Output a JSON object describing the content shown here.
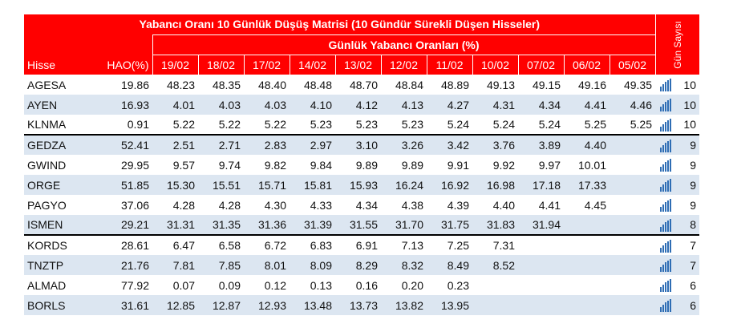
{
  "header": {
    "title": "Yabancı Oranı 10 Günlük Düşüş Matrisi  (10 Gündür Sürekli Düşen Hisseler)",
    "subtitle": "Günlük Yabancı Oranları (%)",
    "side": "Gün Sayısı"
  },
  "table": {
    "columns": [
      "Hisse",
      "HAO(%)",
      "19/02",
      "18/02",
      "17/02",
      "14/02",
      "13/02",
      "12/02",
      "11/02",
      "10/02",
      "07/02",
      "06/02",
      "05/02"
    ],
    "rows": [
      {
        "hisse": "AGESA",
        "hao": "19.86",
        "values": [
          "48.23",
          "48.35",
          "48.40",
          "48.48",
          "48.70",
          "48.84",
          "48.89",
          "49.13",
          "49.15",
          "49.16",
          "49.35"
        ],
        "days": 10
      },
      {
        "hisse": "AYEN",
        "hao": "16.93",
        "values": [
          "4.01",
          "4.03",
          "4.03",
          "4.10",
          "4.12",
          "4.13",
          "4.27",
          "4.31",
          "4.34",
          "4.41",
          "4.46"
        ],
        "days": 10
      },
      {
        "hisse": "KLNMA",
        "hao": "0.91",
        "values": [
          "5.22",
          "5.22",
          "5.22",
          "5.23",
          "5.23",
          "5.23",
          "5.24",
          "5.24",
          "5.24",
          "5.25",
          "5.25"
        ],
        "days": 10
      },
      {
        "hisse": "GEDZA",
        "hao": "52.41",
        "values": [
          "2.51",
          "2.71",
          "2.83",
          "2.97",
          "3.10",
          "3.26",
          "3.42",
          "3.76",
          "3.89",
          "4.40"
        ],
        "days": 9
      },
      {
        "hisse": "GWIND",
        "hao": "29.95",
        "values": [
          "9.57",
          "9.74",
          "9.82",
          "9.84",
          "9.89",
          "9.89",
          "9.91",
          "9.92",
          "9.97",
          "10.01"
        ],
        "days": 9
      },
      {
        "hisse": "ORGE",
        "hao": "51.85",
        "values": [
          "15.30",
          "15.51",
          "15.71",
          "15.81",
          "15.93",
          "16.24",
          "16.92",
          "16.98",
          "17.18",
          "17.33"
        ],
        "days": 9
      },
      {
        "hisse": "PAGYO",
        "hao": "37.06",
        "values": [
          "4.28",
          "4.28",
          "4.30",
          "4.33",
          "4.34",
          "4.38",
          "4.39",
          "4.40",
          "4.41",
          "4.45"
        ],
        "days": 9
      },
      {
        "hisse": "ISMEN",
        "hao": "29.21",
        "values": [
          "31.31",
          "31.35",
          "31.36",
          "31.39",
          "31.55",
          "31.70",
          "31.75",
          "31.83",
          "31.94"
        ],
        "days": 8
      },
      {
        "hisse": "KORDS",
        "hao": "28.61",
        "values": [
          "6.47",
          "6.58",
          "6.72",
          "6.83",
          "6.91",
          "7.13",
          "7.25",
          "7.31"
        ],
        "days": 7
      },
      {
        "hisse": "TNZTP",
        "hao": "21.76",
        "values": [
          "7.81",
          "7.85",
          "8.01",
          "8.09",
          "8.29",
          "8.32",
          "8.49",
          "8.52"
        ],
        "days": 7
      },
      {
        "hisse": "ALMAD",
        "hao": "77.92",
        "values": [
          "0.07",
          "0.09",
          "0.12",
          "0.13",
          "0.16",
          "0.20",
          "0.23"
        ],
        "days": 6
      },
      {
        "hisse": "BORLS",
        "hao": "31.61",
        "values": [
          "12.85",
          "12.87",
          "12.93",
          "13.48",
          "13.73",
          "13.82",
          "13.95"
        ],
        "days": 6
      }
    ]
  }
}
